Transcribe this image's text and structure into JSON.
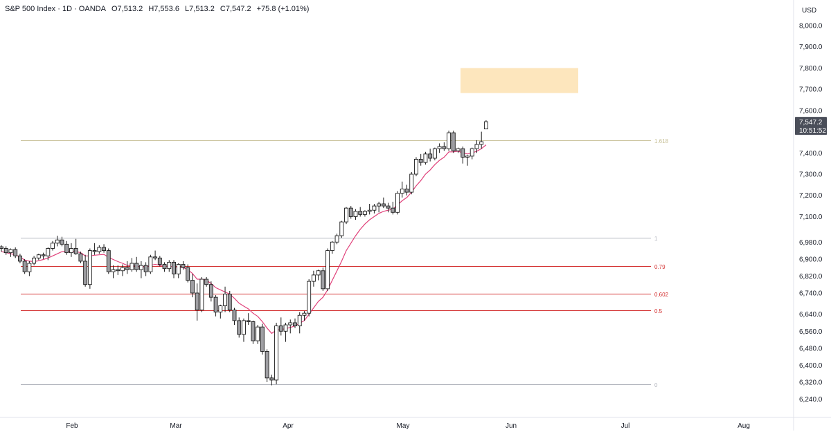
{
  "header": {
    "symbol": "S&P 500 Index · 1D · OANDA",
    "open": "O7,513.2",
    "high": "H7,553.6",
    "low": "L7,513.2",
    "close": "C7,547.2",
    "change": "+75.8 (+1.01%)"
  },
  "colors": {
    "fib_red": "#d32f2f",
    "fib_grey": "#b2b5be",
    "fib_tan": "#c9c29a",
    "ma": "#e0417a",
    "zone": "#fde6bd",
    "price_tag": "#4a4e59"
  },
  "chart_data": {
    "type": "candlestick",
    "currency_label": "USD",
    "y_ticks": [
      "8,000.0",
      "7,900.0",
      "7,800.0",
      "7,700.0",
      "7,600.0",
      "7,400.0",
      "7,300.0",
      "7,200.0",
      "7,100.0",
      "6,980.0",
      "6,900.0",
      "6,820.0",
      "6,740.0",
      "6,640.0",
      "6,560.0",
      "6,480.0",
      "6,400.0",
      "6,320.0",
      "6,240.0"
    ],
    "x_labels": [
      "Feb",
      "Mar",
      "Apr",
      "May",
      "Jun",
      "Jul",
      "Aug"
    ],
    "price_tag": {
      "value": "7,547.2",
      "countdown": "10:51:52"
    },
    "fib_levels": [
      {
        "label": "1.618",
        "value": 7460,
        "color": "tan"
      },
      {
        "label": "1",
        "value": 7000,
        "color": "grey"
      },
      {
        "label": "0.79",
        "value": 6867,
        "color": "red"
      },
      {
        "label": "0.602",
        "value": 6738,
        "color": "red"
      },
      {
        "label": "0.5",
        "value": 6660,
        "color": "red"
      },
      {
        "label": "0",
        "value": 6310,
        "color": "grey"
      }
    ],
    "zone": {
      "low": 7682,
      "high": 7800
    },
    "candles": [
      [
        6958,
        6965,
        6935,
        6950
      ],
      [
        6950,
        6960,
        6920,
        6930
      ],
      [
        6930,
        6950,
        6910,
        6945
      ],
      [
        6945,
        6955,
        6905,
        6915
      ],
      [
        6915,
        6925,
        6880,
        6890
      ],
      [
        6890,
        6900,
        6830,
        6840
      ],
      [
        6840,
        6890,
        6820,
        6880
      ],
      [
        6880,
        6915,
        6870,
        6905
      ],
      [
        6905,
        6925,
        6895,
        6920
      ],
      [
        6920,
        6930,
        6900,
        6915
      ],
      [
        6915,
        6955,
        6895,
        6950
      ],
      [
        6950,
        6985,
        6940,
        6975
      ],
      [
        6975,
        7010,
        6960,
        6990
      ],
      [
        6990,
        7005,
        6960,
        6970
      ],
      [
        6970,
        6985,
        6920,
        6930
      ],
      [
        6930,
        6975,
        6910,
        6950
      ],
      [
        6950,
        6995,
        6920,
        6925
      ],
      [
        6925,
        6935,
        6880,
        6890
      ],
      [
        6890,
        6920,
        6770,
        6780
      ],
      [
        6780,
        6950,
        6760,
        6940
      ],
      [
        6940,
        6975,
        6920,
        6935
      ],
      [
        6935,
        6965,
        6925,
        6955
      ],
      [
        6955,
        6970,
        6930,
        6940
      ],
      [
        6940,
        6950,
        6830,
        6840
      ],
      [
        6840,
        6870,
        6810,
        6850
      ],
      [
        6850,
        6870,
        6825,
        6845
      ],
      [
        6845,
        6875,
        6820,
        6860
      ],
      [
        6860,
        6890,
        6830,
        6850
      ],
      [
        6850,
        6905,
        6840,
        6880
      ],
      [
        6880,
        6910,
        6840,
        6850
      ],
      [
        6850,
        6890,
        6810,
        6870
      ],
      [
        6870,
        6885,
        6820,
        6840
      ],
      [
        6840,
        6920,
        6830,
        6910
      ],
      [
        6910,
        6940,
        6895,
        6905
      ],
      [
        6905,
        6915,
        6865,
        6875
      ],
      [
        6875,
        6885,
        6840,
        6855
      ],
      [
        6855,
        6895,
        6840,
        6885
      ],
      [
        6885,
        6895,
        6810,
        6830
      ],
      [
        6830,
        6880,
        6810,
        6875
      ],
      [
        6875,
        6890,
        6850,
        6860
      ],
      [
        6860,
        6875,
        6790,
        6800
      ],
      [
        6800,
        6830,
        6720,
        6740
      ],
      [
        6740,
        6785,
        6610,
        6660
      ],
      [
        6660,
        6815,
        6650,
        6805
      ],
      [
        6805,
        6815,
        6770,
        6780
      ],
      [
        6780,
        6795,
        6700,
        6720
      ],
      [
        6720,
        6730,
        6630,
        6650
      ],
      [
        6650,
        6685,
        6620,
        6680
      ],
      [
        6680,
        6770,
        6650,
        6735
      ],
      [
        6735,
        6750,
        6650,
        6660
      ],
      [
        6660,
        6670,
        6590,
        6610
      ],
      [
        6610,
        6625,
        6530,
        6545
      ],
      [
        6545,
        6620,
        6510,
        6610
      ],
      [
        6610,
        6645,
        6590,
        6605
      ],
      [
        6605,
        6610,
        6500,
        6515
      ],
      [
        6515,
        6590,
        6500,
        6580
      ],
      [
        6580,
        6595,
        6450,
        6465
      ],
      [
        6465,
        6475,
        6320,
        6340
      ],
      [
        6340,
        6355,
        6305,
        6330
      ],
      [
        6330,
        6600,
        6310,
        6585
      ],
      [
        6585,
        6625,
        6540,
        6560
      ],
      [
        6560,
        6600,
        6510,
        6590
      ],
      [
        6590,
        6615,
        6550,
        6600
      ],
      [
        6600,
        6620,
        6575,
        6585
      ],
      [
        6585,
        6650,
        6550,
        6635
      ],
      [
        6635,
        6655,
        6610,
        6645
      ],
      [
        6645,
        6805,
        6630,
        6795
      ],
      [
        6795,
        6845,
        6770,
        6825
      ],
      [
        6825,
        6850,
        6800,
        6845
      ],
      [
        6845,
        6860,
        6750,
        6760
      ],
      [
        6760,
        6950,
        6750,
        6940
      ],
      [
        6940,
        6985,
        6925,
        6980
      ],
      [
        6980,
        7020,
        6970,
        7010
      ],
      [
        7010,
        7080,
        7000,
        7075
      ],
      [
        7075,
        7145,
        7065,
        7140
      ],
      [
        7140,
        7150,
        7090,
        7100
      ],
      [
        7100,
        7135,
        7085,
        7125
      ],
      [
        7125,
        7145,
        7100,
        7110
      ],
      [
        7110,
        7130,
        7100,
        7125
      ],
      [
        7125,
        7160,
        7110,
        7130
      ],
      [
        7130,
        7160,
        7115,
        7150
      ],
      [
        7150,
        7170,
        7120,
        7160
      ],
      [
        7160,
        7190,
        7140,
        7150
      ],
      [
        7150,
        7165,
        7120,
        7140
      ],
      [
        7140,
        7170,
        7110,
        7120
      ],
      [
        7120,
        7220,
        7110,
        7210
      ],
      [
        7210,
        7265,
        7190,
        7230
      ],
      [
        7230,
        7250,
        7200,
        7215
      ],
      [
        7215,
        7310,
        7205,
        7300
      ],
      [
        7300,
        7380,
        7290,
        7370
      ],
      [
        7370,
        7395,
        7340,
        7355
      ],
      [
        7355,
        7405,
        7345,
        7395
      ],
      [
        7395,
        7420,
        7360,
        7375
      ],
      [
        7375,
        7425,
        7365,
        7420
      ],
      [
        7420,
        7445,
        7400,
        7430
      ],
      [
        7430,
        7450,
        7410,
        7420
      ],
      [
        7420,
        7505,
        7410,
        7495
      ],
      [
        7495,
        7505,
        7400,
        7410
      ],
      [
        7410,
        7425,
        7400,
        7420
      ],
      [
        7420,
        7430,
        7350,
        7380
      ],
      [
        7380,
        7390,
        7340,
        7385
      ],
      [
        7385,
        7425,
        7370,
        7420
      ],
      [
        7420,
        7460,
        7400,
        7440
      ],
      [
        7440,
        7500,
        7420,
        7453
      ],
      [
        7513,
        7554,
        7513,
        7547
      ]
    ],
    "ma": [
      6935,
      6930,
      6925,
      6920,
      6910,
      6895,
      6890,
      6888,
      6892,
      6898,
      6905,
      6915,
      6925,
      6935,
      6935,
      6937,
      6935,
      6930,
      6915,
      6915,
      6918,
      6920,
      6922,
      6908,
      6898,
      6888,
      6880,
      6870,
      6870,
      6866,
      6865,
      6862,
      6870,
      6875,
      6870,
      6865,
      6868,
      6862,
      6862,
      6860,
      6850,
      6832,
      6805,
      6805,
      6800,
      6785,
      6765,
      6755,
      6745,
      6735,
      6715,
      6692,
      6678,
      6665,
      6645,
      6630,
      6605,
      6575,
      6550,
      6565,
      6568,
      6572,
      6578,
      6585,
      6598,
      6610,
      6640,
      6670,
      6700,
      6720,
      6755,
      6800,
      6845,
      6890,
      6940,
      6975,
      7010,
      7040,
      7065,
      7085,
      7100,
      7115,
      7125,
      7130,
      7135,
      7155,
      7175,
      7190,
      7215,
      7245,
      7270,
      7300,
      7320,
      7345,
      7365,
      7380,
      7405,
      7405,
      7408,
      7400,
      7395,
      7400,
      7408,
      7420,
      7438
    ]
  }
}
